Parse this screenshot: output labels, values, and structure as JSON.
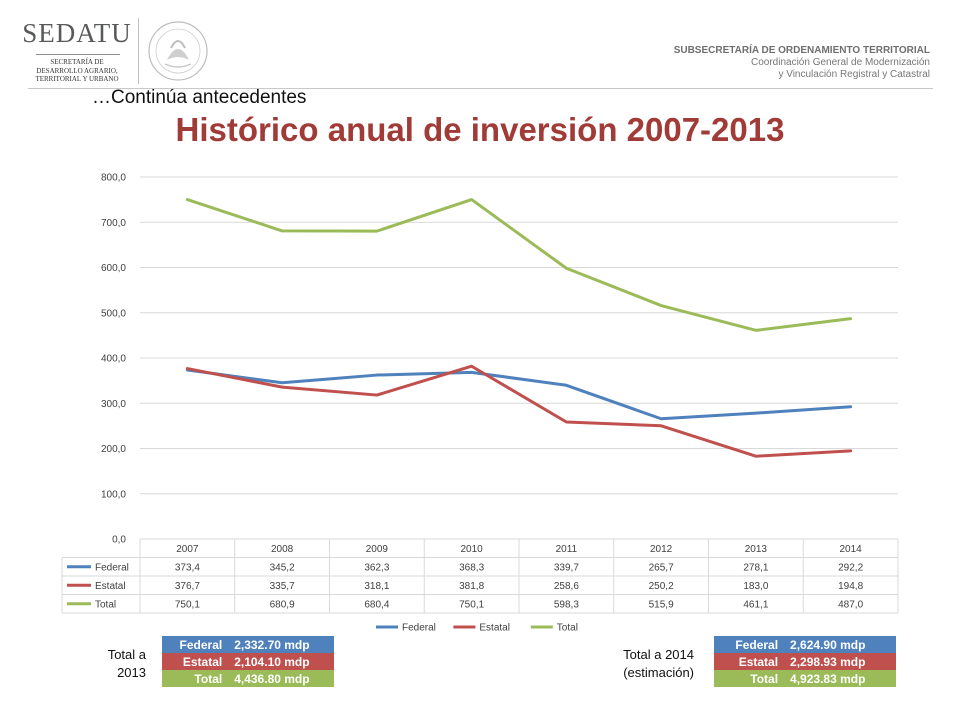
{
  "header": {
    "logo_text": "SEDATU",
    "logo_subtitle_lines": [
      "SECRETARÍA DE",
      "DESARROLLO AGRARIO,",
      "TERRITORIAL Y URBANO"
    ],
    "seal_name": "mexican-coat-of-arms",
    "unit_title": "SUBSECRETARÍA DE ORDENAMIENTO TERRITORIAL",
    "unit_line2": "Coordinación General de Modernización",
    "unit_line3": "y Vinculación Registral y Catastral"
  },
  "subtitle": "…Continúa antecedentes",
  "title": "Histórico anual de inversión 2007-2013",
  "chart_data": {
    "type": "line",
    "categories": [
      "2007",
      "2008",
      "2009",
      "2010",
      "2011",
      "2012",
      "2013",
      "2014"
    ],
    "ylim": [
      0,
      800
    ],
    "yticks": [
      "0,0",
      "100,0",
      "200,0",
      "300,0",
      "400,0",
      "500,0",
      "600,0",
      "700,0",
      "800,0"
    ],
    "grid": true,
    "legend_position": "bottom",
    "series": [
      {
        "name": "Federal",
        "color": "#4f81bd",
        "values": [
          373.4,
          345.2,
          362.3,
          368.3,
          339.7,
          265.7,
          278.1,
          292.2
        ],
        "labels": [
          "373,4",
          "345,2",
          "362,3",
          "368,3",
          "339,7",
          "265,7",
          "278,1",
          "292,2"
        ]
      },
      {
        "name": "Estatal",
        "color": "#c0504d",
        "values": [
          376.7,
          335.7,
          318.1,
          381.8,
          258.6,
          250.2,
          183.0,
          194.8
        ],
        "labels": [
          "376,7",
          "335,7",
          "318,1",
          "381,8",
          "258,6",
          "250,2",
          "183,0",
          "194,8"
        ]
      },
      {
        "name": "Total",
        "color": "#9bbb59",
        "values": [
          750.1,
          680.9,
          680.4,
          750.1,
          598.3,
          515.9,
          461.1,
          487.0
        ],
        "labels": [
          "750,1",
          "680,9",
          "680,4",
          "750,1",
          "598,3",
          "515,9",
          "461,1",
          "487,0"
        ]
      }
    ]
  },
  "totals_2013": {
    "label_line1": "Total a",
    "label_line2": "2013",
    "rows": [
      {
        "label": "Federal",
        "value": "2,332.70 mdp"
      },
      {
        "label": "Estatal",
        "value": "2,104.10 mdp"
      },
      {
        "label": "Total",
        "value": "4,436.80 mdp"
      }
    ]
  },
  "totals_2014": {
    "label_line1": "Total a 2014",
    "label_line2": "(estimación)",
    "rows": [
      {
        "label": "Federal",
        "value": "2,624.90 mdp"
      },
      {
        "label": "Estatal",
        "value": "2,298.93 mdp"
      },
      {
        "label": "Total",
        "value": "4,923.83 mdp"
      }
    ]
  }
}
